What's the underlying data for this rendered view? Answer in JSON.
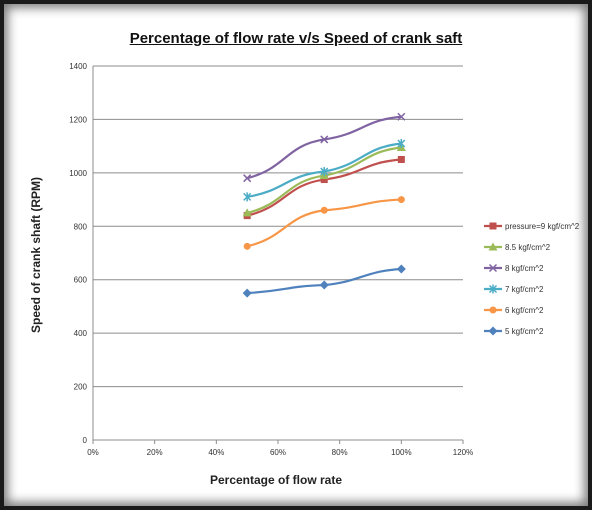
{
  "chart_data": {
    "type": "line",
    "title": "Percentage of flow rate v/s Speed of crank saft",
    "xlabel": "Percentage of flow rate",
    "ylabel": "Speed of crank shaft (RPM)",
    "xlim": [
      0,
      120
    ],
    "ylim": [
      0,
      1400
    ],
    "x_ticks": [
      "0%",
      "20%",
      "40%",
      "60%",
      "80%",
      "100%",
      "120%"
    ],
    "y_ticks": [
      "0",
      "200",
      "400",
      "600",
      "800",
      "1000",
      "1200",
      "1400"
    ],
    "grid": true,
    "legend_position": "right",
    "series": [
      {
        "name": "pressure=9 kgf/cm^2",
        "color": "#c0504d",
        "marker": "square",
        "x": [
          50,
          75,
          100
        ],
        "y": [
          840,
          975,
          1050
        ]
      },
      {
        "name": "8.5  kgf/cm^2",
        "color": "#9bbb59",
        "marker": "triangle",
        "x": [
          50,
          75,
          100
        ],
        "y": [
          850,
          990,
          1095
        ]
      },
      {
        "name": "8 kgf/cm^2",
        "color": "#8064a2",
        "marker": "x",
        "x": [
          50,
          75,
          100
        ],
        "y": [
          980,
          1125,
          1210
        ]
      },
      {
        "name": "7 kgf/cm^2",
        "color": "#4bacc6",
        "marker": "asterisk",
        "x": [
          50,
          75,
          100
        ],
        "y": [
          910,
          1005,
          1110
        ]
      },
      {
        "name": "6 kgf/cm^2",
        "color": "#f79646",
        "marker": "circle",
        "x": [
          50,
          75,
          100
        ],
        "y": [
          725,
          860,
          900
        ]
      },
      {
        "name": "5 kgf/cm^2",
        "color": "#4f81bd",
        "marker": "diamond",
        "x": [
          50,
          75,
          100
        ],
        "y": [
          550,
          580,
          640
        ]
      }
    ]
  }
}
